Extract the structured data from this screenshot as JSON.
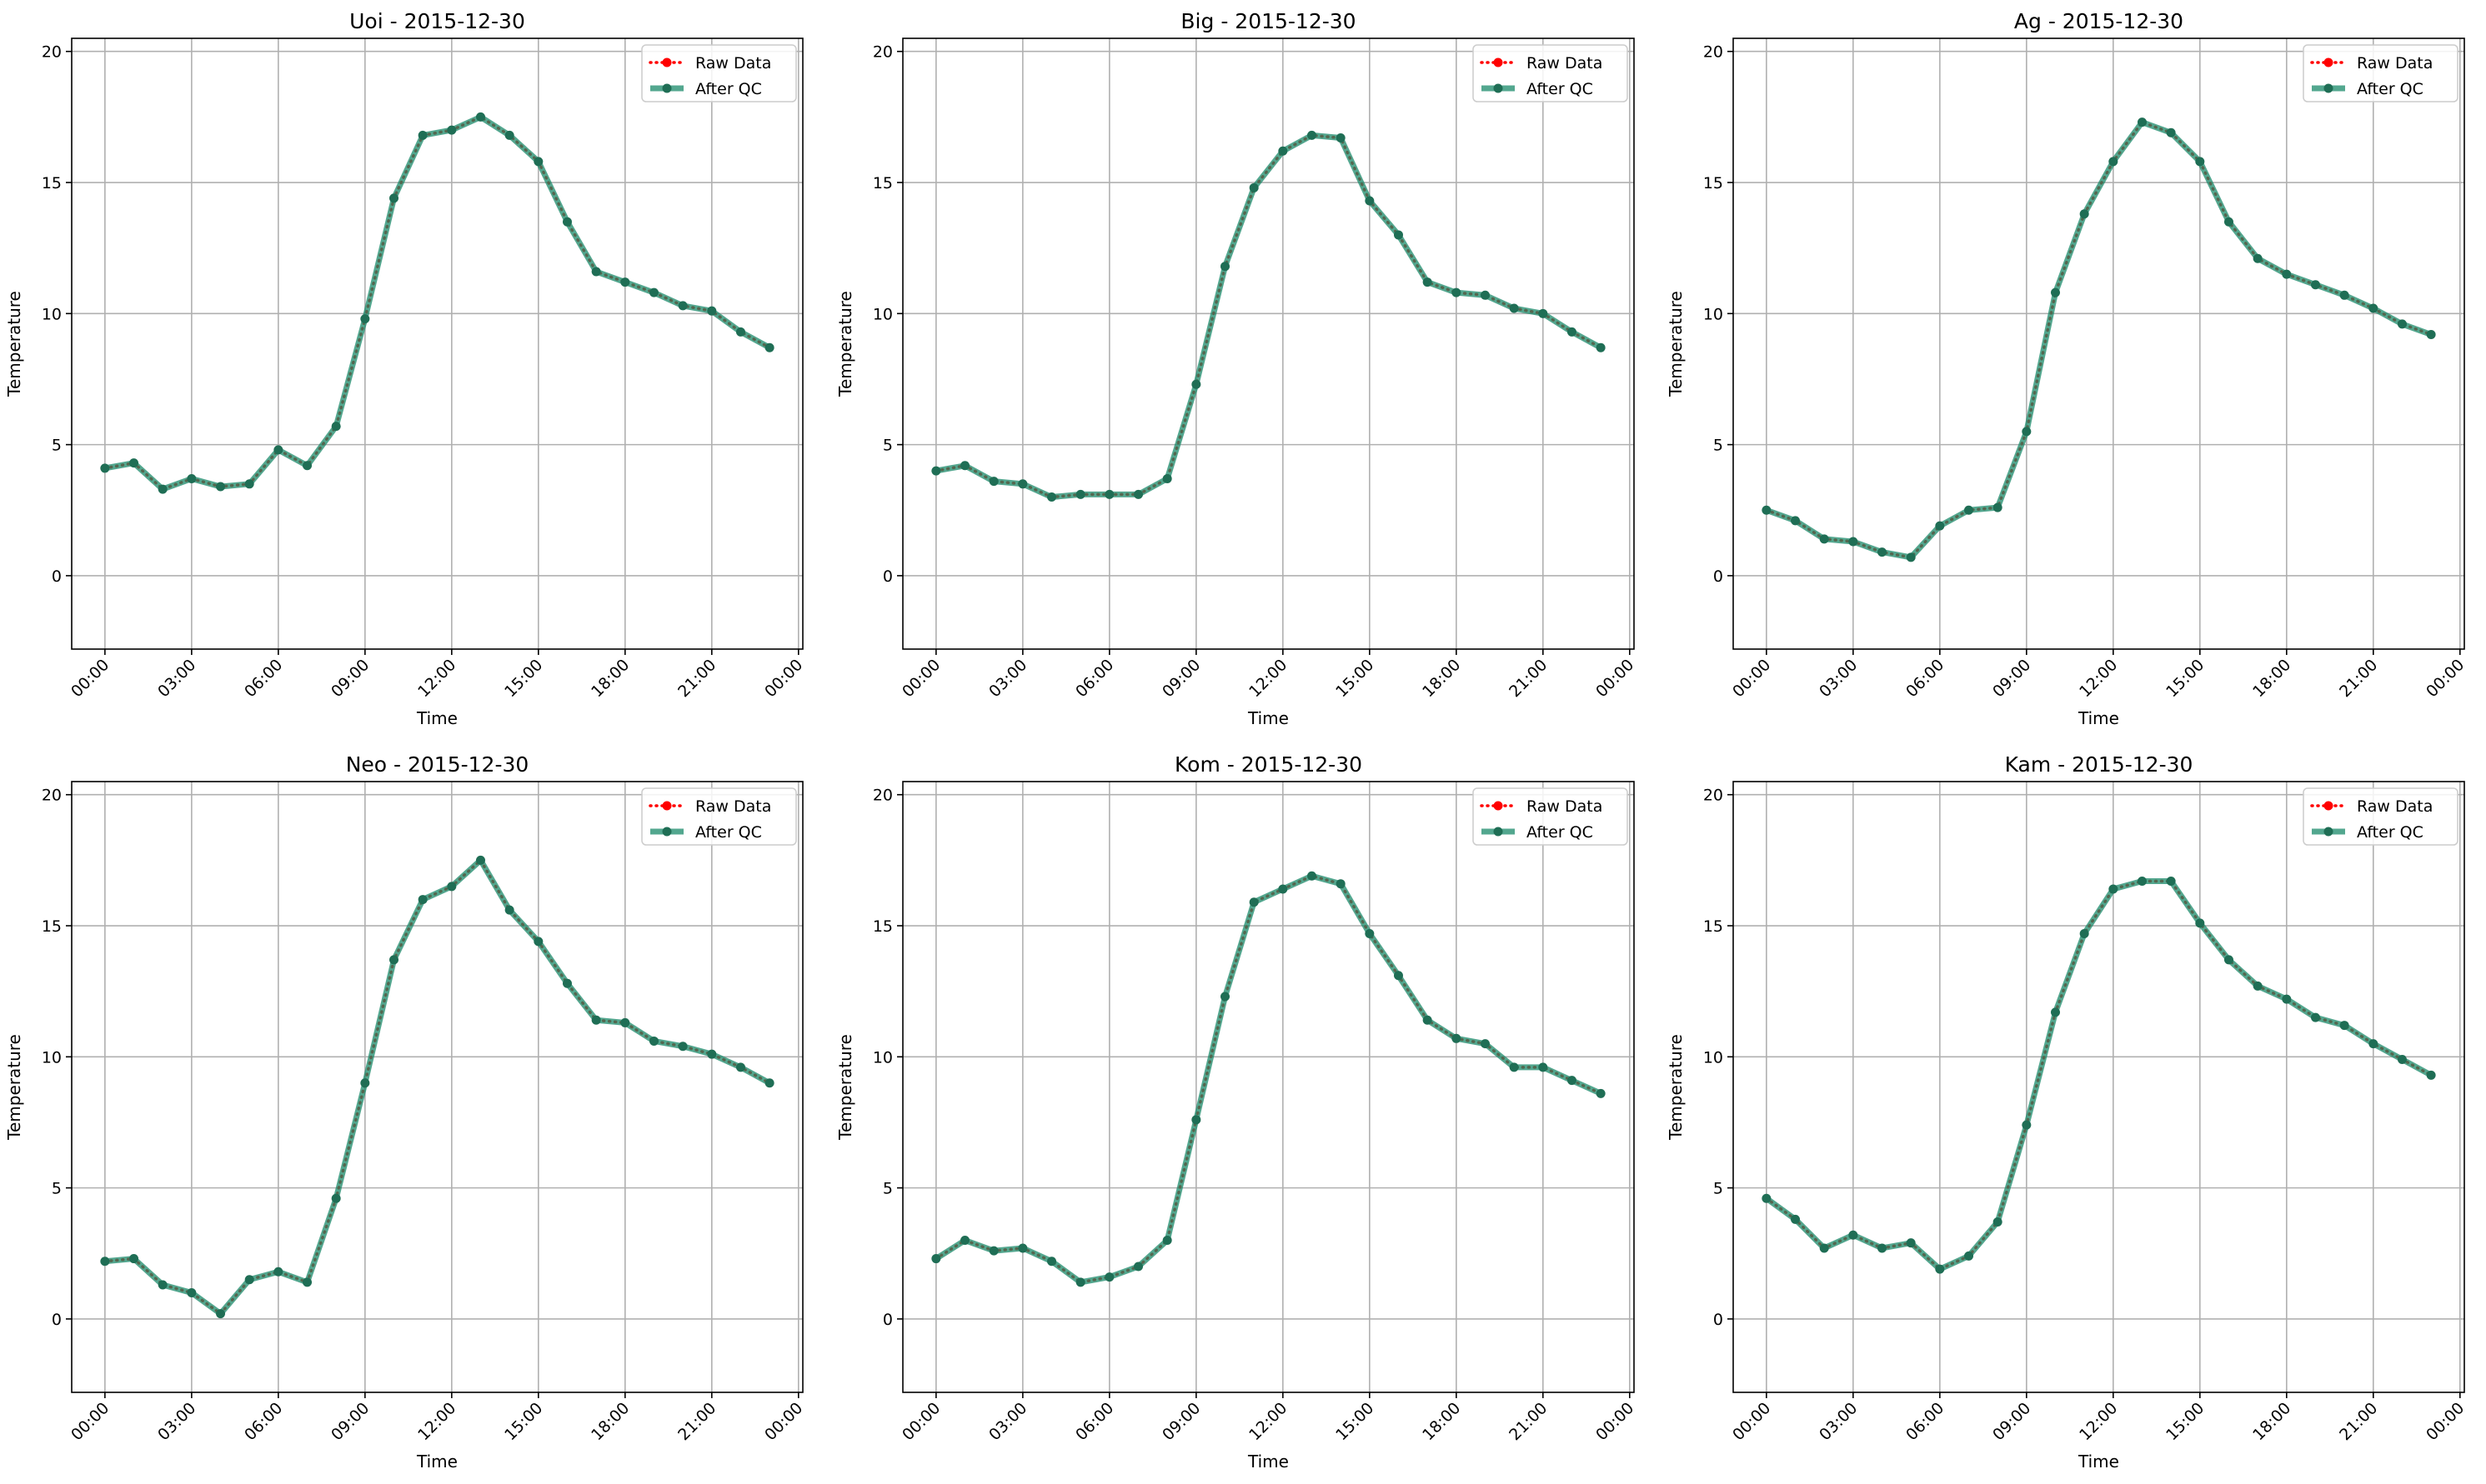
{
  "chart_data": [
    {
      "type": "line",
      "title": "Uoi - 2015-12-30",
      "xlabel": "Time",
      "ylabel": "Temperature",
      "ylim": [
        -2.8,
        20.5
      ],
      "xlim_hours": [
        -1.15,
        24.15
      ],
      "yticks": [
        "0",
        "5",
        "10",
        "15",
        "20"
      ],
      "xticks": [
        "00:00",
        "03:00",
        "06:00",
        "09:00",
        "12:00",
        "15:00",
        "18:00",
        "21:00",
        "00:00"
      ],
      "grid": true,
      "legend": "top-right",
      "x": [
        "00:00",
        "01:00",
        "02:00",
        "03:00",
        "04:00",
        "05:00",
        "06:00",
        "07:00",
        "08:00",
        "09:00",
        "10:00",
        "11:00",
        "12:00",
        "13:00",
        "14:00",
        "15:00",
        "16:00",
        "17:00",
        "18:00",
        "19:00",
        "20:00",
        "21:00",
        "22:00",
        "23:00"
      ],
      "series": [
        {
          "name": "Raw Data",
          "color": "#ff0000",
          "style": "dotted",
          "values": [
            4.1,
            4.3,
            3.3,
            3.7,
            3.4,
            3.5,
            4.8,
            4.2,
            5.7,
            9.8,
            14.4,
            16.8,
            17.0,
            17.5,
            16.8,
            15.8,
            13.5,
            11.6,
            11.2,
            10.8,
            10.3,
            10.1,
            9.3,
            8.7
          ]
        },
        {
          "name": "After QC",
          "color": "#1a8a6a",
          "style": "solid",
          "values": [
            4.1,
            4.3,
            3.3,
            3.7,
            3.4,
            3.5,
            4.8,
            4.2,
            5.7,
            9.8,
            14.4,
            16.8,
            17.0,
            17.5,
            16.8,
            15.8,
            13.5,
            11.6,
            11.2,
            10.8,
            10.3,
            10.1,
            9.3,
            8.7
          ]
        }
      ]
    },
    {
      "type": "line",
      "title": "Big - 2015-12-30",
      "xlabel": "Time",
      "ylabel": "Temperature",
      "ylim": [
        -2.8,
        20.5
      ],
      "xlim_hours": [
        -1.15,
        24.15
      ],
      "yticks": [
        "0",
        "5",
        "10",
        "15",
        "20"
      ],
      "xticks": [
        "00:00",
        "03:00",
        "06:00",
        "09:00",
        "12:00",
        "15:00",
        "18:00",
        "21:00",
        "00:00"
      ],
      "grid": true,
      "legend": "top-right",
      "x": [
        "00:00",
        "01:00",
        "02:00",
        "03:00",
        "04:00",
        "05:00",
        "06:00",
        "07:00",
        "08:00",
        "09:00",
        "10:00",
        "11:00",
        "12:00",
        "13:00",
        "14:00",
        "15:00",
        "16:00",
        "17:00",
        "18:00",
        "19:00",
        "20:00",
        "21:00",
        "22:00",
        "23:00"
      ],
      "series": [
        {
          "name": "Raw Data",
          "color": "#ff0000",
          "style": "dotted",
          "values": [
            4.0,
            4.2,
            3.6,
            3.5,
            3.0,
            3.1,
            3.1,
            3.1,
            3.7,
            7.3,
            11.8,
            14.8,
            16.2,
            16.8,
            16.7,
            14.3,
            13.0,
            11.2,
            10.8,
            10.7,
            10.2,
            10.0,
            9.3,
            8.7
          ]
        },
        {
          "name": "After QC",
          "color": "#1a8a6a",
          "style": "solid",
          "values": [
            4.0,
            4.2,
            3.6,
            3.5,
            3.0,
            3.1,
            3.1,
            3.1,
            3.7,
            7.3,
            11.8,
            14.8,
            16.2,
            16.8,
            16.7,
            14.3,
            13.0,
            11.2,
            10.8,
            10.7,
            10.2,
            10.0,
            9.3,
            8.7
          ]
        }
      ]
    },
    {
      "type": "line",
      "title": "Ag - 2015-12-30",
      "xlabel": "Time",
      "ylabel": "Temperature",
      "ylim": [
        -2.8,
        20.5
      ],
      "xlim_hours": [
        -1.15,
        24.15
      ],
      "yticks": [
        "0",
        "5",
        "10",
        "15",
        "20"
      ],
      "xticks": [
        "00:00",
        "03:00",
        "06:00",
        "09:00",
        "12:00",
        "15:00",
        "18:00",
        "21:00",
        "00:00"
      ],
      "grid": true,
      "legend": "top-right",
      "x": [
        "00:00",
        "01:00",
        "02:00",
        "03:00",
        "04:00",
        "05:00",
        "06:00",
        "07:00",
        "08:00",
        "09:00",
        "10:00",
        "11:00",
        "12:00",
        "13:00",
        "14:00",
        "15:00",
        "16:00",
        "17:00",
        "18:00",
        "19:00",
        "20:00",
        "21:00",
        "22:00",
        "23:00"
      ],
      "series": [
        {
          "name": "Raw Data",
          "color": "#ff0000",
          "style": "dotted",
          "values": [
            2.5,
            2.1,
            1.4,
            1.3,
            0.9,
            0.7,
            1.9,
            2.5,
            2.6,
            5.5,
            10.8,
            13.8,
            15.8,
            17.3,
            16.9,
            15.8,
            13.5,
            12.1,
            11.5,
            11.1,
            10.7,
            10.2,
            9.6,
            9.2
          ]
        },
        {
          "name": "After QC",
          "color": "#1a8a6a",
          "style": "solid",
          "values": [
            2.5,
            2.1,
            1.4,
            1.3,
            0.9,
            0.7,
            1.9,
            2.5,
            2.6,
            5.5,
            10.8,
            13.8,
            15.8,
            17.3,
            16.9,
            15.8,
            13.5,
            12.1,
            11.5,
            11.1,
            10.7,
            10.2,
            9.6,
            9.2
          ]
        }
      ]
    },
    {
      "type": "line",
      "title": "Neo - 2015-12-30",
      "xlabel": "Time",
      "ylabel": "Temperature",
      "ylim": [
        -2.8,
        20.5
      ],
      "xlim_hours": [
        -1.15,
        24.15
      ],
      "yticks": [
        "0",
        "5",
        "10",
        "15",
        "20"
      ],
      "xticks": [
        "00:00",
        "03:00",
        "06:00",
        "09:00",
        "12:00",
        "15:00",
        "18:00",
        "21:00",
        "00:00"
      ],
      "grid": true,
      "legend": "top-right",
      "x": [
        "00:00",
        "01:00",
        "02:00",
        "03:00",
        "04:00",
        "05:00",
        "06:00",
        "07:00",
        "08:00",
        "09:00",
        "10:00",
        "11:00",
        "12:00",
        "13:00",
        "14:00",
        "15:00",
        "16:00",
        "17:00",
        "18:00",
        "19:00",
        "20:00",
        "21:00",
        "22:00",
        "23:00"
      ],
      "series": [
        {
          "name": "Raw Data",
          "color": "#ff0000",
          "style": "dotted",
          "values": [
            2.2,
            2.3,
            1.3,
            1.0,
            0.2,
            1.5,
            1.8,
            1.4,
            4.6,
            9.0,
            13.7,
            16.0,
            16.5,
            17.5,
            15.6,
            14.4,
            12.8,
            11.4,
            11.3,
            10.6,
            10.4,
            10.1,
            9.6,
            9.0
          ]
        },
        {
          "name": "After QC",
          "color": "#1a8a6a",
          "style": "solid",
          "values": [
            2.2,
            2.3,
            1.3,
            1.0,
            0.2,
            1.5,
            1.8,
            1.4,
            4.6,
            9.0,
            13.7,
            16.0,
            16.5,
            17.5,
            15.6,
            14.4,
            12.8,
            11.4,
            11.3,
            10.6,
            10.4,
            10.1,
            9.6,
            9.0
          ]
        }
      ]
    },
    {
      "type": "line",
      "title": "Kom - 2015-12-30",
      "xlabel": "Time",
      "ylabel": "Temperature",
      "ylim": [
        -2.8,
        20.5
      ],
      "xlim_hours": [
        -1.15,
        24.15
      ],
      "yticks": [
        "0",
        "5",
        "10",
        "15",
        "20"
      ],
      "xticks": [
        "00:00",
        "03:00",
        "06:00",
        "09:00",
        "12:00",
        "15:00",
        "18:00",
        "21:00",
        "00:00"
      ],
      "grid": true,
      "legend": "top-right",
      "x": [
        "00:00",
        "01:00",
        "02:00",
        "03:00",
        "04:00",
        "05:00",
        "06:00",
        "07:00",
        "08:00",
        "09:00",
        "10:00",
        "11:00",
        "12:00",
        "13:00",
        "14:00",
        "15:00",
        "16:00",
        "17:00",
        "18:00",
        "19:00",
        "20:00",
        "21:00",
        "22:00",
        "23:00"
      ],
      "series": [
        {
          "name": "Raw Data",
          "color": "#ff0000",
          "style": "dotted",
          "values": [
            2.3,
            3.0,
            2.6,
            2.7,
            2.2,
            1.4,
            1.6,
            2.0,
            3.0,
            7.6,
            12.3,
            15.9,
            16.4,
            16.9,
            16.6,
            14.7,
            13.1,
            11.4,
            10.7,
            10.5,
            9.6,
            9.6,
            9.1,
            8.6
          ]
        },
        {
          "name": "After QC",
          "color": "#1a8a6a",
          "style": "solid",
          "values": [
            2.3,
            3.0,
            2.6,
            2.7,
            2.2,
            1.4,
            1.6,
            2.0,
            3.0,
            7.6,
            12.3,
            15.9,
            16.4,
            16.9,
            16.6,
            14.7,
            13.1,
            11.4,
            10.7,
            10.5,
            9.6,
            9.6,
            9.1,
            8.6
          ]
        }
      ]
    },
    {
      "type": "line",
      "title": "Kam - 2015-12-30",
      "xlabel": "Time",
      "ylabel": "Temperature",
      "ylim": [
        -2.8,
        20.5
      ],
      "xlim_hours": [
        -1.15,
        24.15
      ],
      "yticks": [
        "0",
        "5",
        "10",
        "15",
        "20"
      ],
      "xticks": [
        "00:00",
        "03:00",
        "06:00",
        "09:00",
        "12:00",
        "15:00",
        "18:00",
        "21:00",
        "00:00"
      ],
      "grid": true,
      "legend": "top-right",
      "x": [
        "00:00",
        "01:00",
        "02:00",
        "03:00",
        "04:00",
        "05:00",
        "06:00",
        "07:00",
        "08:00",
        "09:00",
        "10:00",
        "11:00",
        "12:00",
        "13:00",
        "14:00",
        "15:00",
        "16:00",
        "17:00",
        "18:00",
        "19:00",
        "20:00",
        "21:00",
        "22:00",
        "23:00"
      ],
      "series": [
        {
          "name": "Raw Data",
          "color": "#ff0000",
          "style": "dotted",
          "values": [
            4.6,
            3.8,
            2.7,
            3.2,
            2.7,
            2.9,
            1.9,
            2.4,
            3.7,
            7.4,
            11.7,
            14.7,
            16.4,
            16.7,
            16.7,
            15.1,
            13.7,
            12.7,
            12.2,
            11.5,
            11.2,
            10.5,
            9.9,
            9.3
          ]
        },
        {
          "name": "After QC",
          "color": "#1a8a6a",
          "style": "solid",
          "values": [
            4.6,
            3.8,
            2.7,
            3.2,
            2.7,
            2.9,
            1.9,
            2.4,
            3.7,
            7.4,
            11.7,
            14.7,
            16.4,
            16.7,
            16.7,
            15.1,
            13.7,
            12.7,
            12.2,
            11.5,
            11.2,
            10.5,
            9.9,
            9.3
          ]
        }
      ]
    }
  ]
}
